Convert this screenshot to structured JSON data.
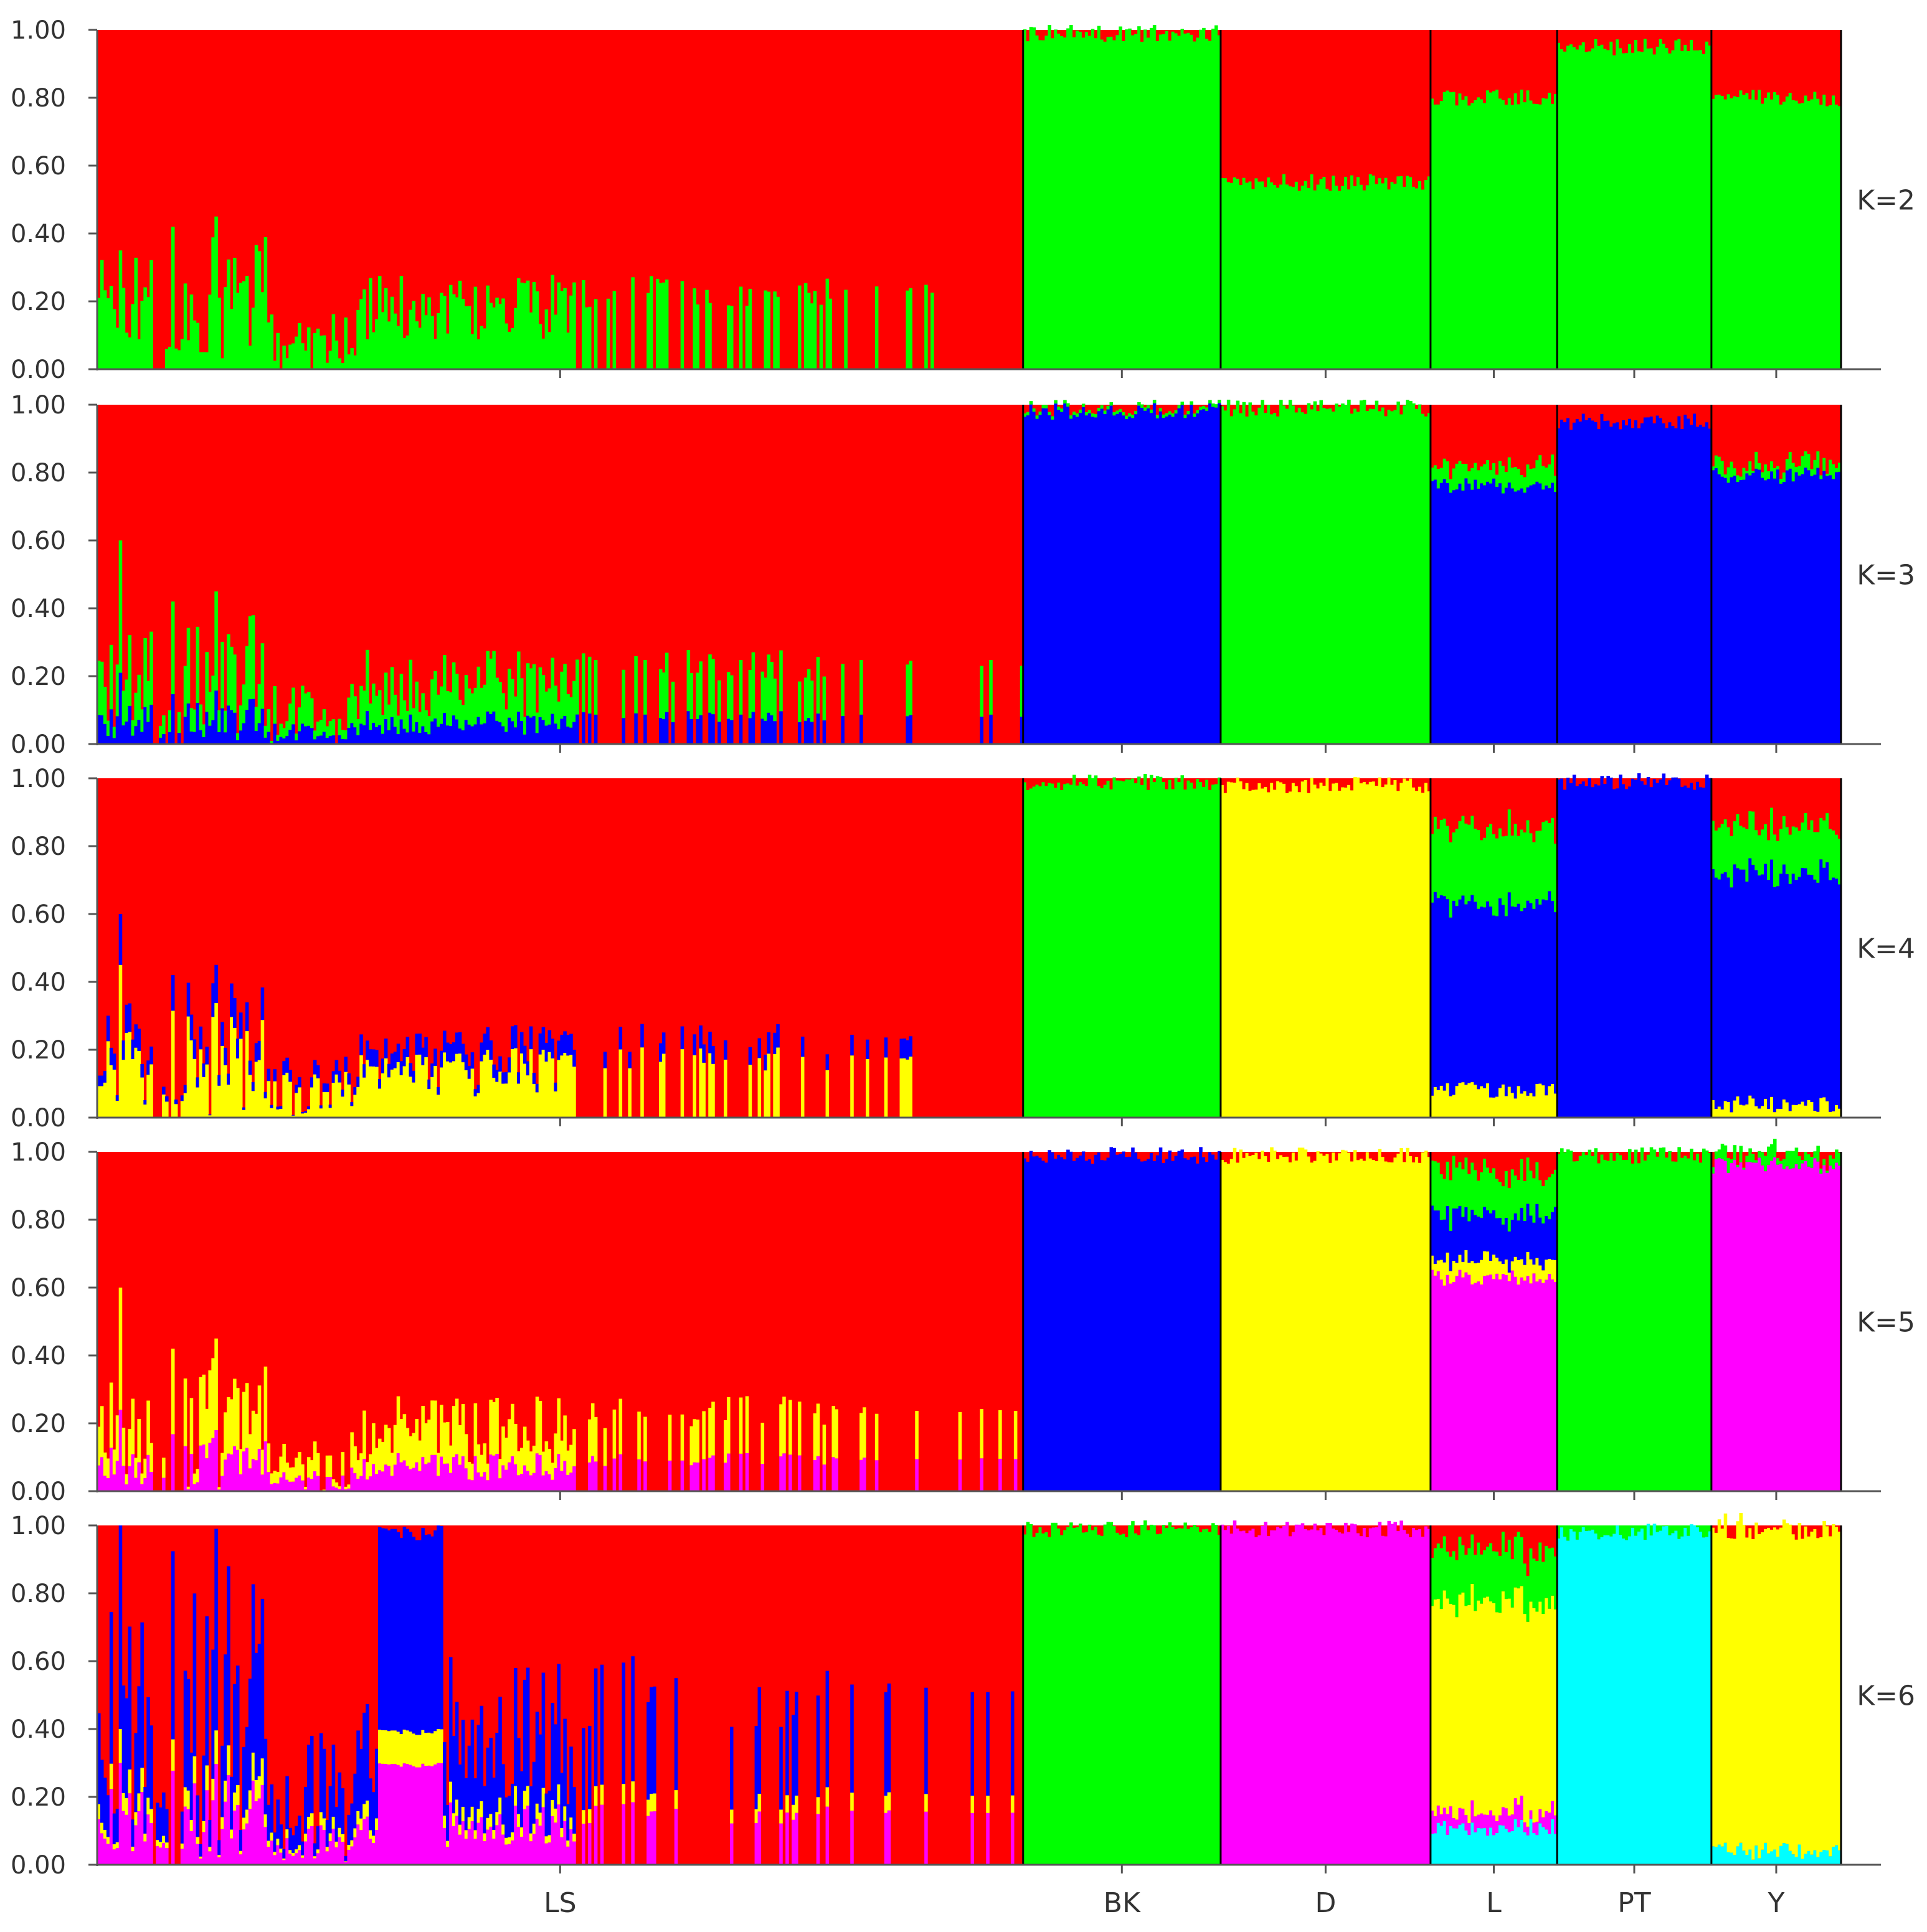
{
  "chart_data": {
    "type": "bar",
    "stacked": true,
    "y_tick_labels": [
      "0.00",
      "0.20",
      "0.40",
      "0.60",
      "0.80",
      "1.00"
    ],
    "ylim": [
      0,
      1
    ],
    "populations": [
      {
        "name": "LS",
        "individuals": 300
      },
      {
        "name": "BK",
        "individuals": 64
      },
      {
        "name": "D",
        "individuals": 68
      },
      {
        "name": "L",
        "individuals": 41
      },
      {
        "name": "PT",
        "individuals": 50
      },
      {
        "name": "Y",
        "individuals": 42
      }
    ],
    "cluster_colors": {
      "red": "#ff0000",
      "green": "#00ff00",
      "blue": "#0000ff",
      "yellow": "#ffff00",
      "magenta": "#ff00ff",
      "cyan": "#00ffff"
    },
    "panels": [
      {
        "label": "K=2",
        "ls_clusters": [
          "green"
        ],
        "ls_profile": "green_mostly_0_to_0.20_peak_0.35",
        "populations": [
          {
            "name": "BK",
            "stack": [
              [
                "green",
                0.99
              ],
              [
                "red",
                0.01
              ]
            ]
          },
          {
            "name": "D",
            "stack": [
              [
                "green",
                0.55
              ],
              [
                "red",
                0.45
              ]
            ]
          },
          {
            "name": "L",
            "stack": [
              [
                "green",
                0.8
              ],
              [
                "red",
                0.2
              ]
            ]
          },
          {
            "name": "PT",
            "stack": [
              [
                "green",
                0.95
              ],
              [
                "red",
                0.05
              ]
            ]
          },
          {
            "name": "Y",
            "stack": [
              [
                "green",
                0.8
              ],
              [
                "red",
                0.2
              ]
            ]
          }
        ]
      },
      {
        "label": "K=3",
        "ls_clusters": [
          "blue",
          "green"
        ],
        "ls_profile": "blue_0_to_0.10_green_to_0.30_peak_0.60",
        "populations": [
          {
            "name": "BK",
            "stack": [
              [
                "blue",
                0.98
              ],
              [
                "green",
                0.01
              ],
              [
                "red",
                0.01
              ]
            ]
          },
          {
            "name": "D",
            "stack": [
              [
                "green",
                0.99
              ],
              [
                "red",
                0.01
              ]
            ]
          },
          {
            "name": "L",
            "stack": [
              [
                "blue",
                0.76
              ],
              [
                "green",
                0.06
              ],
              [
                "red",
                0.18
              ]
            ]
          },
          {
            "name": "PT",
            "stack": [
              [
                "blue",
                0.95
              ],
              [
                "red",
                0.05
              ]
            ]
          },
          {
            "name": "Y",
            "stack": [
              [
                "blue",
                0.79
              ],
              [
                "green",
                0.03
              ],
              [
                "red",
                0.18
              ]
            ]
          }
        ]
      },
      {
        "label": "K=4",
        "ls_clusters": [
          "yellow",
          "blue"
        ],
        "ls_profile": "yellow_0_to_0.30_peak_0.60_blue_flecks",
        "populations": [
          {
            "name": "BK",
            "stack": [
              [
                "green",
                0.99
              ],
              [
                "red",
                0.01
              ]
            ]
          },
          {
            "name": "D",
            "stack": [
              [
                "yellow",
                0.98
              ],
              [
                "red",
                0.02
              ]
            ]
          },
          {
            "name": "L",
            "stack": [
              [
                "yellow",
                0.08
              ],
              [
                "blue",
                0.55
              ],
              [
                "green",
                0.22
              ],
              [
                "red",
                0.15
              ]
            ]
          },
          {
            "name": "PT",
            "stack": [
              [
                "blue",
                0.99
              ],
              [
                "red",
                0.01
              ]
            ]
          },
          {
            "name": "Y",
            "stack": [
              [
                "yellow",
                0.04
              ],
              [
                "blue",
                0.68
              ],
              [
                "green",
                0.14
              ],
              [
                "red",
                0.14
              ]
            ]
          }
        ]
      },
      {
        "label": "K=5",
        "ls_clusters": [
          "magenta",
          "yellow"
        ],
        "ls_profile": "magenta_0_to_0.15_yellow_to_0.30_peak_0.60",
        "populations": [
          {
            "name": "BK",
            "stack": [
              [
                "blue",
                0.99
              ],
              [
                "red",
                0.01
              ]
            ]
          },
          {
            "name": "D",
            "stack": [
              [
                "yellow",
                0.99
              ],
              [
                "red",
                0.01
              ]
            ]
          },
          {
            "name": "L",
            "stack": [
              [
                "magenta",
                0.63
              ],
              [
                "yellow",
                0.05
              ],
              [
                "blue",
                0.14
              ],
              [
                "green",
                0.13
              ],
              [
                "red",
                0.05
              ]
            ]
          },
          {
            "name": "PT",
            "stack": [
              [
                "green",
                0.99
              ],
              [
                "red",
                0.01
              ]
            ]
          },
          {
            "name": "Y",
            "stack": [
              [
                "magenta",
                0.96
              ],
              [
                "green",
                0.03
              ],
              [
                "red",
                0.01
              ]
            ]
          }
        ]
      },
      {
        "label": "K=6",
        "ls_clusters": [
          "magenta",
          "yellow",
          "blue"
        ],
        "ls_profile": "blue_and_magenta_admixture_up_to_1.00",
        "populations": [
          {
            "name": "BK",
            "stack": [
              [
                "green",
                0.99
              ],
              [
                "red",
                0.01
              ]
            ]
          },
          {
            "name": "D",
            "stack": [
              [
                "magenta",
                0.99
              ],
              [
                "red",
                0.01
              ]
            ]
          },
          {
            "name": "L",
            "stack": [
              [
                "cyan",
                0.11
              ],
              [
                "magenta",
                0.05
              ],
              [
                "yellow",
                0.62
              ],
              [
                "green",
                0.16
              ],
              [
                "red",
                0.06
              ]
            ]
          },
          {
            "name": "PT",
            "stack": [
              [
                "cyan",
                0.98
              ],
              [
                "green",
                0.02
              ]
            ]
          },
          {
            "name": "Y",
            "stack": [
              [
                "cyan",
                0.04
              ],
              [
                "yellow",
                0.95
              ],
              [
                "red",
                0.01
              ]
            ]
          }
        ]
      }
    ]
  }
}
